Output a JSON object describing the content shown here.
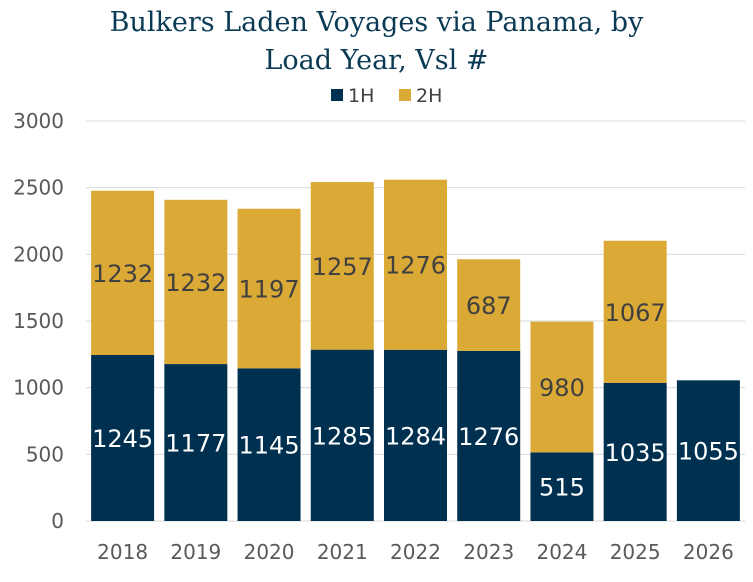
{
  "chart_data": {
    "type": "bar",
    "stacked": true,
    "title_lines": [
      "Bulkers Laden Voyages via Panama, by",
      "Load Year, Vsl #"
    ],
    "categories": [
      "2018",
      "2019",
      "2020",
      "2021",
      "2022",
      "2023",
      "2024",
      "2025",
      "2026"
    ],
    "series": [
      {
        "name": "1H",
        "color": "#003050",
        "values": [
          1245,
          1177,
          1145,
          1285,
          1284,
          1276,
          515,
          1035,
          1055
        ]
      },
      {
        "name": "2H",
        "color": "#dbaa36",
        "values": [
          1232,
          1232,
          1197,
          1257,
          1276,
          687,
          980,
          1067,
          null
        ]
      }
    ],
    "ylim": [
      0,
      3000
    ],
    "yticks": [
      0,
      500,
      1000,
      1500,
      2000,
      2500,
      3000
    ],
    "grid": true,
    "legend": "top-center",
    "xlabel": "",
    "ylabel": ""
  }
}
